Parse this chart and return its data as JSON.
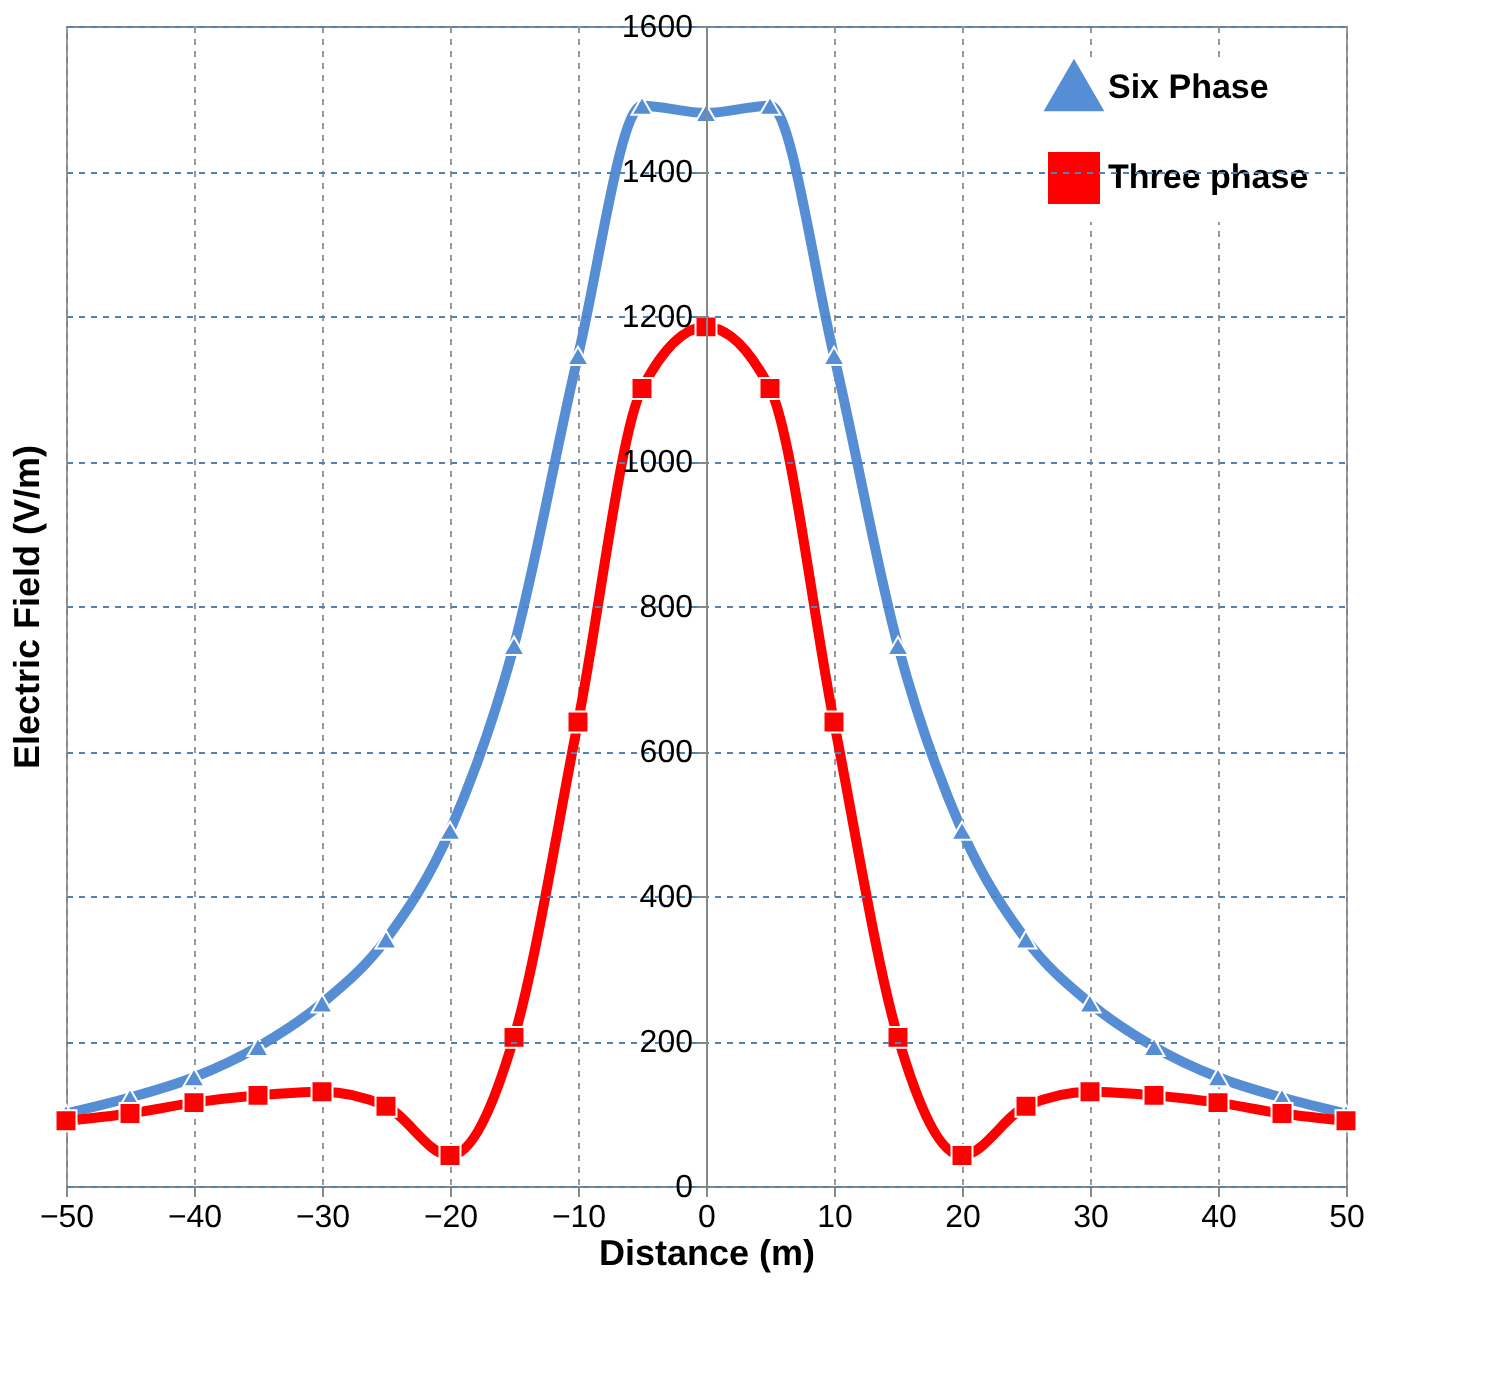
{
  "chart_data": {
    "type": "line",
    "xlabel": "Distance (m)",
    "ylabel": "Electric Field  (V/m)",
    "x": [
      -50,
      -45,
      -40,
      -35,
      -30,
      -25,
      -20,
      -15,
      -10,
      -5,
      0,
      5,
      10,
      15,
      20,
      25,
      30,
      35,
      40,
      45,
      50
    ],
    "xlim": [
      -50,
      50
    ],
    "xticks": [
      -50,
      -40,
      -30,
      -20,
      -10,
      0,
      10,
      20,
      30,
      40,
      50
    ],
    "ylim": [
      0,
      1600
    ],
    "yticks": [
      0,
      200,
      400,
      600,
      800,
      1000,
      1200,
      1400,
      1600
    ],
    "grid": true,
    "legend": "top right",
    "line_style": "solid",
    "series": [
      {
        "name": "Six Phase",
        "color": "#558ed5",
        "marker": "triangle",
        "values": [
          100,
          122,
          150,
          192,
          252,
          340,
          490,
          745,
          1145,
          1490,
          1480,
          1490,
          1145,
          745,
          490,
          340,
          252,
          192,
          150,
          122,
          100
        ]
      },
      {
        "name": "Three phase",
        "color": "#ff0000",
        "marker": "square",
        "values": [
          90,
          100,
          115,
          125,
          130,
          110,
          42,
          205,
          640,
          1100,
          1185,
          1100,
          640,
          205,
          42,
          110,
          130,
          125,
          115,
          100,
          90
        ]
      }
    ]
  }
}
